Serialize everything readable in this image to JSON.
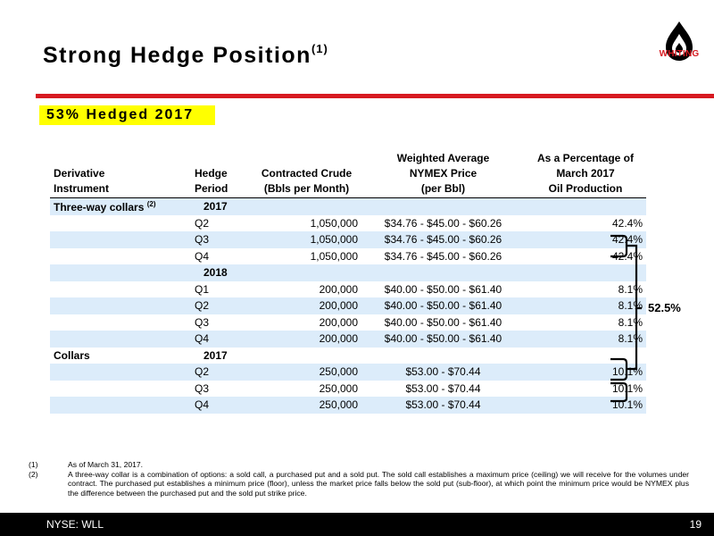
{
  "slide": {
    "title": "Strong Hedge Position",
    "title_note": "(1)",
    "hedged_label": "53% Hedged 2017",
    "logo_text": "WHITING",
    "accent_color": "#d71920",
    "highlight_color": "#ffff00",
    "row_shade_color": "#dcecfa"
  },
  "table": {
    "headers": {
      "instrument": [
        "Derivative",
        "Instrument"
      ],
      "period": [
        "Hedge",
        "Period"
      ],
      "volume": [
        "Contracted Crude",
        "(Bbls per Month)"
      ],
      "price": [
        "Weighted Average",
        "NYMEX Price",
        "(per Bbl)"
      ],
      "pct": [
        "As a Percentage of",
        "March 2017",
        "Oil Production"
      ]
    },
    "rows": [
      {
        "instrument": "Three-way collars",
        "instrument_note": "(2)",
        "period": "2017",
        "period_is_year": true,
        "volume": "",
        "price": "",
        "pct": "",
        "shaded": true
      },
      {
        "instrument": "",
        "period": "Q2",
        "volume": "1,050,000",
        "price": "$34.76 - $45.00 - $60.26",
        "pct": "42.4%",
        "shaded": false
      },
      {
        "instrument": "",
        "period": "Q3",
        "volume": "1,050,000",
        "price": "$34.76 - $45.00 - $60.26",
        "pct": "42.4%",
        "shaded": true
      },
      {
        "instrument": "",
        "period": "Q4",
        "volume": "1,050,000",
        "price": "$34.76 - $45.00 - $60.26",
        "pct": "42.4%",
        "shaded": false
      },
      {
        "instrument": "",
        "period": "2018",
        "period_is_year": true,
        "volume": "",
        "price": "",
        "pct": "",
        "shaded": true
      },
      {
        "instrument": "",
        "period": "Q1",
        "volume": "200,000",
        "price": "$40.00 - $50.00 - $61.40",
        "pct": "8.1%",
        "shaded": false
      },
      {
        "instrument": "",
        "period": "Q2",
        "volume": "200,000",
        "price": "$40.00 - $50.00 - $61.40",
        "pct": "8.1%",
        "shaded": true
      },
      {
        "instrument": "",
        "period": "Q3",
        "volume": "200,000",
        "price": "$40.00 - $50.00 - $61.40",
        "pct": "8.1%",
        "shaded": false
      },
      {
        "instrument": "",
        "period": "Q4",
        "volume": "200,000",
        "price": "$40.00 - $50.00 - $61.40",
        "pct": "8.1%",
        "shaded": true
      },
      {
        "instrument": "Collars",
        "period": "2017",
        "period_is_year": true,
        "volume": "",
        "price": "",
        "pct": "",
        "shaded": false
      },
      {
        "instrument": "",
        "period": "Q2",
        "volume": "250,000",
        "price": "$53.00 - $70.44",
        "pct": "10.1%",
        "shaded": true
      },
      {
        "instrument": "",
        "period": "Q3",
        "volume": "250,000",
        "price": "$53.00 - $70.44",
        "pct": "10.1%",
        "shaded": false
      },
      {
        "instrument": "",
        "period": "Q4",
        "volume": "250,000",
        "price": "$53.00 - $70.44",
        "pct": "10.1%",
        "shaded": true
      }
    ]
  },
  "bracket_total": "52.5%",
  "footnotes": [
    {
      "num": "(1)",
      "text": "As of March 31, 2017."
    },
    {
      "num": "(2)",
      "text": "A three-way collar is a combination of options: a sold call, a purchased put and a sold put. The sold call establishes a maximum price (ceiling) we will receive for the volumes under contract. The purchased put establishes a minimum price (floor), unless the market price falls below the sold put (sub-floor), at which point the minimum price would be NYMEX plus the difference between the purchased put and the sold put strike price."
    }
  ],
  "footer": {
    "ticker": "NYSE: WLL",
    "page": "19"
  }
}
